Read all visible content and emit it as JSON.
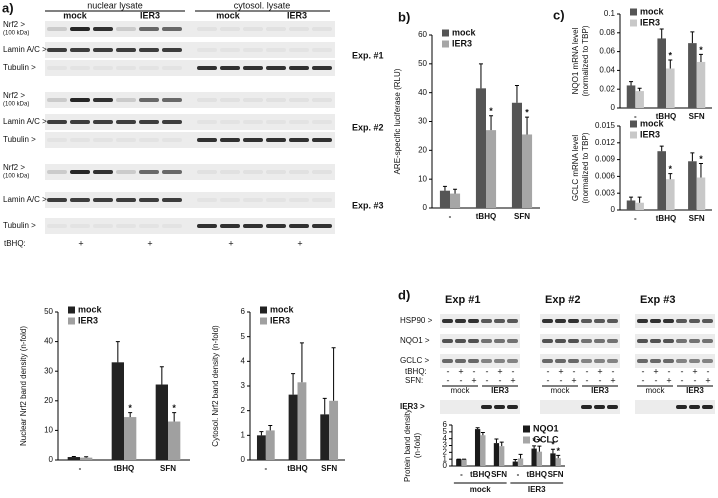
{
  "panels": [
    "a)",
    "b)",
    "c)",
    "d)"
  ],
  "blot_a": {
    "header": [
      "nuclear lysate",
      "cytosol. lysate"
    ],
    "groups": [
      "mock",
      "IER3",
      "mock",
      "IER3"
    ],
    "row_labels": [
      "Nrf2 >",
      "(100 kDa)",
      "Lamin A/C >",
      "Tubulin >"
    ],
    "experiments": [
      "Exp. #1",
      "Exp. #2",
      "Exp. #3"
    ],
    "treatment": "tBHQ:",
    "plus": [
      "+",
      "+",
      "+",
      "+"
    ]
  },
  "blot_d": {
    "experiments": [
      "Exp #1",
      "Exp #2",
      "Exp #3"
    ],
    "rows": [
      "HSP90 >",
      "NQO1 >",
      "GCLC >"
    ],
    "treatments": [
      "tBHQ:",
      "SFN:"
    ],
    "tbhq": [
      "-",
      "+",
      "-"
    ],
    "sfn": [
      "-",
      "-",
      "+"
    ],
    "groups": [
      "mock",
      "IER3"
    ],
    "ier3_row": "IER3 >"
  },
  "chart_data": [
    {
      "type": "bar",
      "y_label": [
        "Nuclear Nrf2 band density (n-fold)"
      ],
      "categories": [
        "-",
        "tBHQ",
        "SFN"
      ],
      "series": [
        {
          "name": "mock",
          "color": "#222222",
          "values": [
            1,
            33,
            25.5
          ],
          "errors": [
            0.2,
            7,
            6
          ],
          "asterisks": [
            null,
            null,
            null
          ]
        },
        {
          "name": "IER3",
          "color": "#a0a0a0",
          "values": [
            0.8,
            14.5,
            13
          ],
          "errors": [
            0.3,
            1.5,
            3
          ],
          "asterisks": [
            null,
            "*",
            "*"
          ]
        }
      ],
      "ylim": [
        0,
        50
      ],
      "yticks": [
        0,
        10,
        20,
        30,
        40,
        50
      ],
      "legend": "upper left"
    },
    {
      "type": "bar",
      "y_label": [
        "Cytosol. Nrf2 band density (n-fold)"
      ],
      "categories": [
        "-",
        "tBHQ",
        "SFN"
      ],
      "series": [
        {
          "name": "mock",
          "color": "#222222",
          "values": [
            1,
            2.65,
            1.85
          ],
          "errors": [
            0.15,
            0.85,
            0.65
          ],
          "asterisks": [
            null,
            null,
            null
          ]
        },
        {
          "name": "IER3",
          "color": "#a0a0a0",
          "values": [
            1.2,
            3.15,
            2.4
          ],
          "errors": [
            0.2,
            1.6,
            2.15
          ],
          "asterisks": [
            null,
            null,
            null
          ]
        }
      ],
      "ylim": [
        0,
        6
      ],
      "yticks": [
        0,
        1,
        2,
        3,
        4,
        5,
        6
      ],
      "legend": "upper left"
    },
    {
      "type": "bar",
      "y_label": [
        "ARE-specific luciferase (RLU)"
      ],
      "categories": [
        "-",
        "tBHQ",
        "SFN"
      ],
      "series": [
        {
          "name": "mock",
          "color": "#555555",
          "values": [
            6,
            41.5,
            36.5
          ],
          "errors": [
            1.5,
            8.5,
            6
          ],
          "asterisks": [
            null,
            null,
            null
          ]
        },
        {
          "name": "IER3",
          "color": "#a6a6a6",
          "values": [
            5,
            27,
            25.5
          ],
          "errors": [
            1.5,
            5,
            6
          ],
          "asterisks": [
            null,
            "*",
            "*"
          ]
        }
      ],
      "ylim": [
        0,
        60
      ],
      "yticks": [
        0,
        10,
        20,
        30,
        40,
        50,
        60
      ],
      "legend": "upper left"
    },
    {
      "type": "bar",
      "y_label": [
        "NQO1 mRNA level",
        "(normalized to TBP)"
      ],
      "categories": [
        "-",
        "tBHQ",
        "SFN"
      ],
      "series": [
        {
          "name": "mock",
          "color": "#555555",
          "values": [
            0.024,
            0.074,
            0.069
          ],
          "errors": [
            0.004,
            0.01,
            0.012
          ],
          "asterisks": [
            null,
            null,
            null
          ]
        },
        {
          "name": "IER3",
          "color": "#c8c8c8",
          "values": [
            0.018,
            0.042,
            0.049
          ],
          "errors": [
            0.003,
            0.009,
            0.008
          ],
          "asterisks": [
            null,
            "*",
            "*"
          ]
        }
      ],
      "ylim": [
        0,
        0.1
      ],
      "yticks": [
        0,
        0.02,
        0.04,
        0.06,
        0.08,
        0.1
      ],
      "legend": "upper left"
    },
    {
      "type": "bar",
      "y_label": [
        "GCLC mRNA level",
        "(normalized to TBP)"
      ],
      "categories": [
        "-",
        "tBHQ",
        "SFN"
      ],
      "series": [
        {
          "name": "mock",
          "color": "#555555",
          "values": [
            0.0017,
            0.0105,
            0.0087
          ],
          "errors": [
            0.0006,
            0.0009,
            0.0015
          ],
          "asterisks": [
            null,
            null,
            null
          ]
        },
        {
          "name": "IER3",
          "color": "#c8c8c8",
          "values": [
            0.0013,
            0.0055,
            0.0058
          ],
          "errors": [
            0.001,
            0.001,
            0.0025
          ],
          "asterisks": [
            null,
            "*",
            "*"
          ]
        }
      ],
      "ylim": [
        0,
        0.015
      ],
      "yticks": [
        0,
        0.003,
        0.006,
        0.009,
        0.012,
        0.015
      ],
      "legend": "upper left"
    },
    {
      "type": "bar",
      "y_label": [
        "Protein band density",
        "(n-fold)"
      ],
      "categories": [
        "-",
        "tBHQ",
        "SFN",
        "-",
        "tBHQ",
        "SFN"
      ],
      "groups": [
        "mock",
        "IER3"
      ],
      "series": [
        {
          "name": "NQO1",
          "color": "#1a1a1a",
          "values": [
            1,
            5.4,
            3.35,
            0.65,
            2.55,
            1.85
          ],
          "errors": [
            0,
            0.2,
            0.6,
            0.3,
            0.4,
            0.6
          ],
          "asterisks": [
            null,
            null,
            null,
            null,
            "*",
            "*"
          ]
        },
        {
          "name": "GCLC",
          "color": "#a6a6a6",
          "values": [
            1,
            4.5,
            2.9,
            1.1,
            2.1,
            1.15
          ],
          "errors": [
            0,
            0.4,
            0.6,
            0.6,
            0.8,
            0.4
          ],
          "asterisks": [
            null,
            null,
            null,
            null,
            "*",
            "*"
          ]
        }
      ],
      "ylim": [
        0,
        6
      ],
      "yticks": [
        0,
        1,
        2,
        3,
        4,
        5,
        6
      ],
      "legend": "upper right"
    }
  ]
}
